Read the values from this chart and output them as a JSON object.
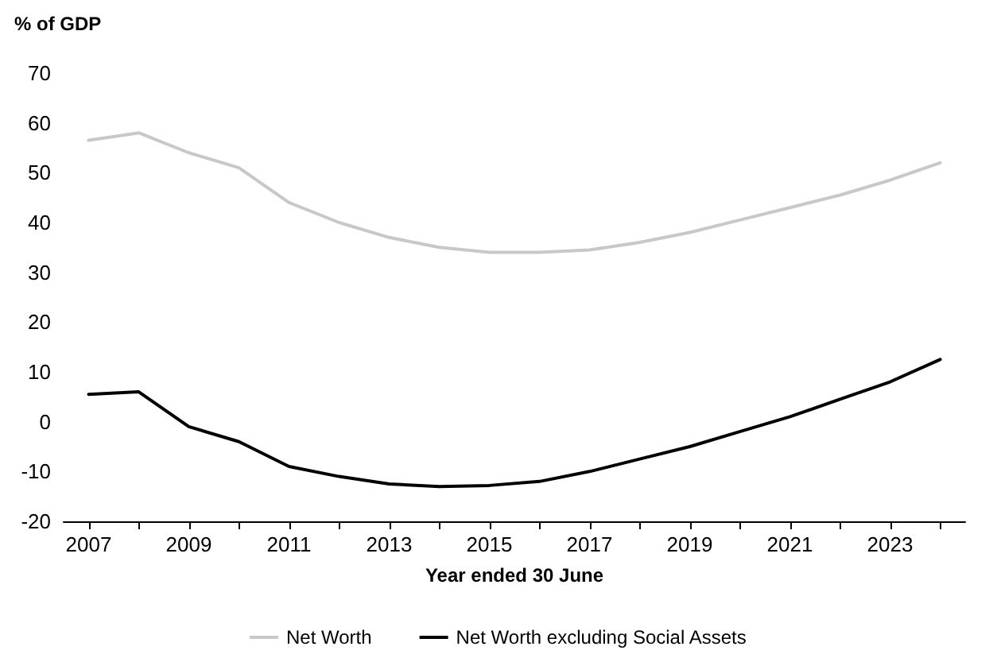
{
  "chart_data": {
    "type": "line",
    "ylabel": "% of GDP",
    "xlabel": "Year ended 30 June",
    "categories": [
      "2007",
      null,
      "2009",
      null,
      "2011",
      null,
      "2013",
      null,
      "2015",
      null,
      "2017",
      null,
      "2019",
      null,
      "2021",
      null,
      "2023",
      null
    ],
    "series": [
      {
        "name": "Net Worth",
        "color": "#c8c8c8",
        "values": [
          56.5,
          58,
          54,
          51,
          44,
          40,
          37,
          35,
          34,
          34,
          34.5,
          36,
          38,
          40.5,
          43,
          45.5,
          48.5,
          52
        ]
      },
      {
        "name": "Net Worth excluding Social Assets",
        "color": "#000000",
        "values": [
          5.5,
          6,
          -1,
          -4,
          -9,
          -11,
          -12.5,
          -13,
          -12.8,
          -12,
          -10,
          -7.5,
          -5,
          -2,
          1,
          4.5,
          8,
          12.5
        ]
      }
    ],
    "ylim": [
      -20,
      70
    ],
    "yticks": [
      -20,
      -10,
      0,
      10,
      20,
      30,
      40,
      50,
      60,
      70
    ],
    "grid": false,
    "legend": "bottom",
    "marker": "none",
    "line_style": "solid"
  }
}
